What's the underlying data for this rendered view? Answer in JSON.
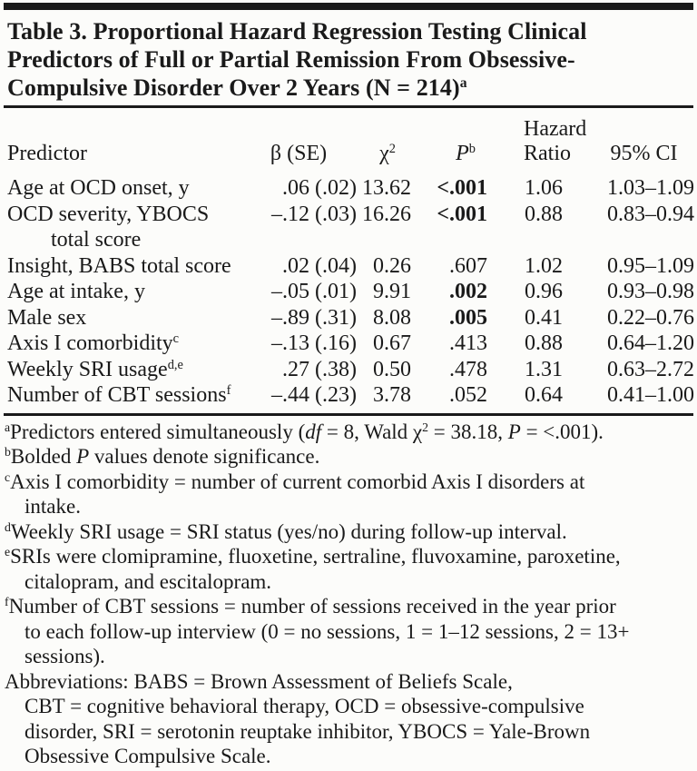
{
  "colors": {
    "background": "#fcfcfa",
    "ink": "#1a1a1a"
  },
  "title": {
    "segments": [
      {
        "t": "Table 3. Proportional Hazard Regression Testing Clinical",
        "s": "n"
      },
      {
        "s": "br"
      },
      {
        "t": "Predictors of Full or Partial Remission From Obsessive-",
        "s": "n"
      },
      {
        "s": "br"
      },
      {
        "t": "Compulsive Disorder Over 2 Years (N = 214)",
        "s": "n"
      },
      {
        "t": "a",
        "s": "sup"
      }
    ]
  },
  "table": {
    "headers": {
      "predictor": "Predictor",
      "beta": "β (SE)",
      "chi": [
        {
          "t": "χ",
          "s": "n"
        },
        {
          "t": "2",
          "s": "sup"
        }
      ],
      "p": [
        {
          "t": "P",
          "s": "i"
        },
        {
          "t": "b",
          "s": "sup"
        }
      ],
      "hazard_line1": "Hazard",
      "hazard_line2": "Ratio",
      "ci": "95% CI"
    },
    "rows": [
      {
        "predictor": [
          {
            "t": "Age at OCD onset, y",
            "s": "n"
          }
        ],
        "beta": ".06 (.02)",
        "chi": "13.62",
        "p": [
          {
            "t": "<.001",
            "s": "b"
          }
        ],
        "hr": "1.06",
        "ci": "1.03–1.09"
      },
      {
        "predictor": [
          {
            "t": "OCD severity, YBOCS",
            "s": "n"
          },
          {
            "s": "br"
          },
          {
            "t": "total score",
            "s": "n"
          }
        ],
        "beta": "–.12 (.03)",
        "chi": "16.26",
        "p": [
          {
            "t": "<.001",
            "s": "b"
          }
        ],
        "hr": "0.88",
        "ci": "0.83–0.94"
      },
      {
        "predictor": [
          {
            "t": "Insight, BABS total score",
            "s": "n"
          }
        ],
        "beta": ".02 (.04)",
        "chi": "0.26",
        "p": [
          {
            "t": ".607",
            "s": "n"
          }
        ],
        "hr": "1.02",
        "ci": "0.95–1.09"
      },
      {
        "predictor": [
          {
            "t": "Age at intake, y",
            "s": "n"
          }
        ],
        "beta": "–.05 (.01)",
        "chi": "9.91",
        "p": [
          {
            "t": ".002",
            "s": "b"
          }
        ],
        "hr": "0.96",
        "ci": "0.93–0.98"
      },
      {
        "predictor": [
          {
            "t": "Male sex",
            "s": "n"
          }
        ],
        "beta": "–.89 (.31)",
        "chi": "8.08",
        "p": [
          {
            "t": ".005",
            "s": "b"
          }
        ],
        "hr": "0.41",
        "ci": "0.22–0.76"
      },
      {
        "predictor": [
          {
            "t": "Axis I comorbidity",
            "s": "n"
          },
          {
            "t": "c",
            "s": "sup"
          }
        ],
        "beta": "–.13 (.16)",
        "chi": "0.67",
        "p": [
          {
            "t": ".413",
            "s": "n"
          }
        ],
        "hr": "0.88",
        "ci": "0.64–1.20"
      },
      {
        "predictor": [
          {
            "t": "Weekly SRI usage",
            "s": "n"
          },
          {
            "t": "d,e",
            "s": "sup"
          }
        ],
        "beta": ".27 (.38)",
        "chi": "0.50",
        "p": [
          {
            "t": ".478",
            "s": "n"
          }
        ],
        "hr": "1.31",
        "ci": "0.63–2.72"
      },
      {
        "predictor": [
          {
            "t": "Number of CBT sessions",
            "s": "n"
          },
          {
            "t": "f",
            "s": "sup"
          }
        ],
        "beta": "–.44 (.23)",
        "chi": "3.78",
        "p": [
          {
            "t": ".052",
            "s": "n"
          }
        ],
        "hr": "0.64",
        "ci": "0.41–1.00"
      }
    ]
  },
  "footnotes": [
    [
      {
        "t": "a",
        "s": "sup"
      },
      {
        "t": "Predictors entered simultaneously (",
        "s": "n"
      },
      {
        "t": "df",
        "s": "i"
      },
      {
        "t": " = 8, Wald χ",
        "s": "n"
      },
      {
        "t": "2",
        "s": "sup"
      },
      {
        "t": " = 38.18, ",
        "s": "n"
      },
      {
        "t": "P",
        "s": "i"
      },
      {
        "t": " = <.001).",
        "s": "n"
      }
    ],
    [
      {
        "t": "b",
        "s": "sup"
      },
      {
        "t": "Bolded ",
        "s": "n"
      },
      {
        "t": "P",
        "s": "i"
      },
      {
        "t": " values denote significance.",
        "s": "n"
      }
    ],
    [
      {
        "t": "c",
        "s": "sup"
      },
      {
        "t": "Axis I comorbidity = number of current comorbid Axis I disorders at",
        "s": "n"
      },
      {
        "s": "br"
      },
      {
        "t": "intake.",
        "s": "n"
      }
    ],
    [
      {
        "t": "d",
        "s": "sup"
      },
      {
        "t": "Weekly SRI usage = SRI status (yes/no) during follow-up interval.",
        "s": "n"
      }
    ],
    [
      {
        "t": "e",
        "s": "sup"
      },
      {
        "t": "SRIs were clomipramine, fluoxetine, sertraline, fluvoxamine, paroxetine,",
        "s": "n"
      },
      {
        "s": "br"
      },
      {
        "t": "citalopram, and escitalopram.",
        "s": "n"
      }
    ],
    [
      {
        "t": "f",
        "s": "sup"
      },
      {
        "t": "Number of CBT sessions = number of sessions received in the year prior",
        "s": "n"
      },
      {
        "s": "br"
      },
      {
        "t": "to each follow-up interview (0 = no sessions, 1 = 1–12 sessions, 2 = 13+",
        "s": "n"
      },
      {
        "s": "br"
      },
      {
        "t": "sessions).",
        "s": "n"
      }
    ],
    [
      {
        "t": "Abbreviations: BABS = Brown Assessment of Beliefs Scale,",
        "s": "n"
      },
      {
        "s": "br"
      },
      {
        "t": "CBT = cognitive behavioral therapy, OCD = obsessive-compulsive",
        "s": "n"
      },
      {
        "s": "br"
      },
      {
        "t": "disorder, SRI = serotonin reuptake inhibitor, YBOCS = Yale-Brown",
        "s": "n"
      },
      {
        "s": "br"
      },
      {
        "t": "Obsessive Compulsive Scale.",
        "s": "n"
      }
    ]
  ]
}
